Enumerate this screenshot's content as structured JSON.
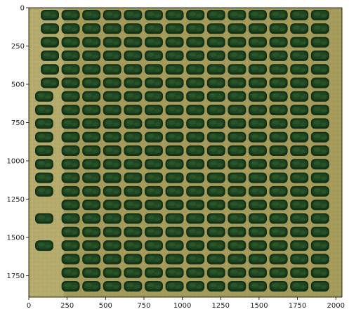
{
  "image": {
    "kind": "aerial crop-plot photograph shown with pixel-coordinate axes",
    "x_axis": {
      "range": [
        0,
        2040
      ],
      "ticks": [
        0,
        250,
        500,
        750,
        1000,
        1250,
        1500,
        1750,
        2000
      ]
    },
    "y_axis": {
      "range": [
        0,
        1890
      ],
      "inverted": true,
      "ticks": [
        0,
        250,
        500,
        750,
        1000,
        1250,
        1500,
        1750
      ]
    },
    "grid": false,
    "colors": {
      "soil": "#a49a5a",
      "soil_light": "#c2b778",
      "soil_dark": "#7d7446",
      "plant": "#1f4521",
      "plant_dark": "#143217",
      "plant_light": "#2f5c2c"
    },
    "plot_grid": {
      "columns": 14,
      "rows": 21
    }
  }
}
